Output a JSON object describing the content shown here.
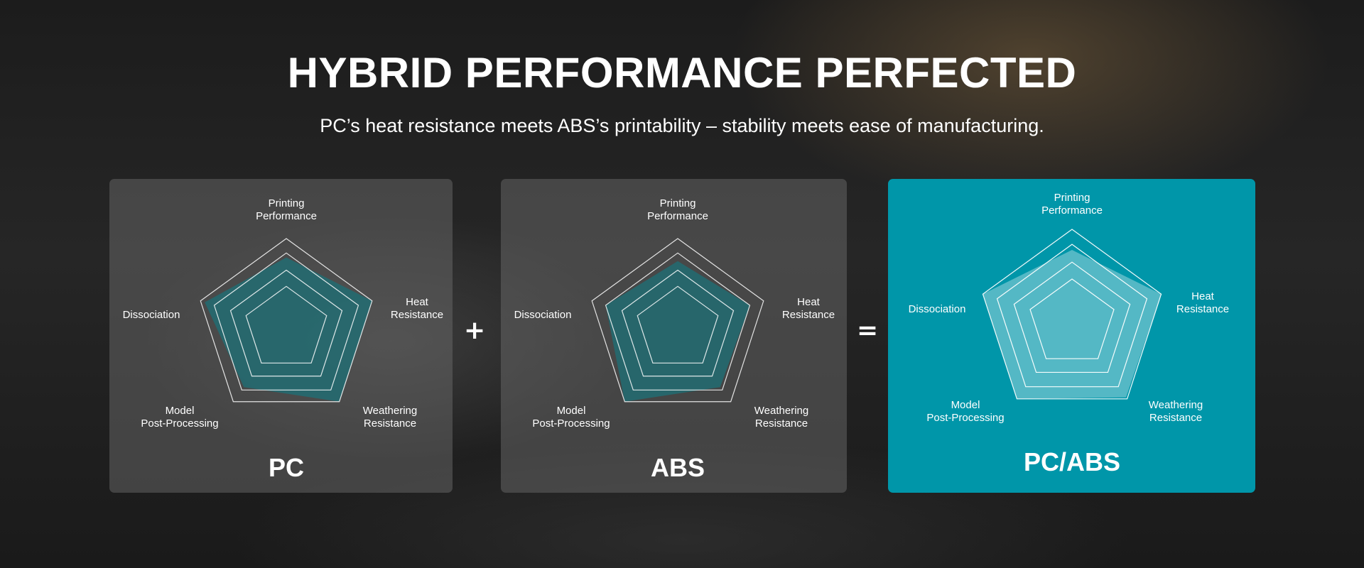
{
  "header": {
    "title": "HYBRID PERFORMANCE PERFECTED",
    "subtitle": "PC’s heat resistance meets ABS’s printability – stability meets ease of manufacturing."
  },
  "operators": {
    "plus": "+",
    "equals": "="
  },
  "colors": {
    "accent": "#0096a9",
    "dark_fill": "#1f6a70"
  },
  "chart_data": [
    {
      "type": "radar",
      "title": "PC",
      "axes": [
        [
          "Printing",
          "Performance"
        ],
        [
          "Heat",
          "Resistance"
        ],
        [
          "Weathering",
          "Resistance"
        ],
        [
          "Model",
          "Post-Processing"
        ],
        [
          "Dissociation"
        ]
      ],
      "values": [
        0.79,
        1.0,
        1.0,
        0.8,
        0.95
      ],
      "range": [
        0,
        1
      ]
    },
    {
      "type": "radar",
      "title": "ABS",
      "axes": [
        [
          "Printing",
          "Performance"
        ],
        [
          "Heat",
          "Resistance"
        ],
        [
          "Weathering",
          "Resistance"
        ],
        [
          "Model",
          "Post-Processing"
        ],
        [
          "Dissociation"
        ]
      ],
      "values": [
        0.75,
        0.84,
        0.8,
        1.0,
        0.84
      ],
      "range": [
        0,
        1
      ]
    },
    {
      "type": "radar",
      "title": "PC/ABS",
      "axes": [
        [
          "Printing",
          "Performance"
        ],
        [
          "Heat",
          "Resistance"
        ],
        [
          "Weathering",
          "Resistance"
        ],
        [
          "Model",
          "Post-Processing"
        ],
        [
          "Dissociation"
        ]
      ],
      "values": [
        0.78,
        1.0,
        0.98,
        1.0,
        1.0
      ],
      "range": [
        0,
        1
      ]
    }
  ]
}
